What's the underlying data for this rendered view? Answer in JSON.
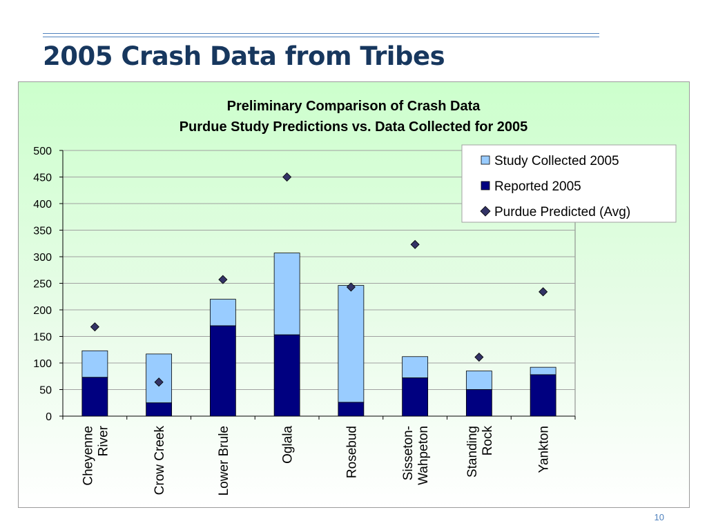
{
  "slide": {
    "title": "2005 Crash Data from Tribes",
    "page_number": "10"
  },
  "colors": {
    "title": "#17375e",
    "study_collected": "#99ccff",
    "reported": "#000080",
    "predicted": "#333366",
    "rule": "#4f81bd"
  },
  "chart_data": {
    "type": "bar",
    "stacked": true,
    "title_lines": [
      "Preliminary Comparison of Crash Data",
      "Purdue Study Predictions vs. Data Collected for 2005"
    ],
    "categories": [
      [
        "Cheyenne",
        "River"
      ],
      [
        "Crow Creek"
      ],
      [
        "Lower Brule"
      ],
      [
        "Oglala"
      ],
      [
        "Rosebud"
      ],
      [
        "Sisseton-",
        "Wahpeton"
      ],
      [
        "Standing",
        "Rock"
      ],
      [
        "Yankton"
      ]
    ],
    "ylim": [
      0,
      500
    ],
    "yticks": [
      0,
      50,
      100,
      150,
      200,
      250,
      300,
      350,
      400,
      450,
      500
    ],
    "grid": true,
    "legend_position": "top-right",
    "legend": [
      "Study Collected 2005",
      "Reported 2005",
      "Purdue Predicted (Avg)"
    ],
    "series": [
      {
        "name": "Reported 2005",
        "kind": "bar",
        "values": [
          73,
          25,
          170,
          153,
          26,
          72,
          50,
          78
        ]
      },
      {
        "name": "Study Collected 2005",
        "kind": "bar-total",
        "values": [
          123,
          117,
          220,
          307,
          246,
          112,
          85,
          92
        ]
      },
      {
        "name": "Purdue Predicted (Avg)",
        "kind": "marker",
        "values": [
          168,
          64,
          257,
          450,
          243,
          323,
          111,
          234
        ]
      }
    ]
  }
}
